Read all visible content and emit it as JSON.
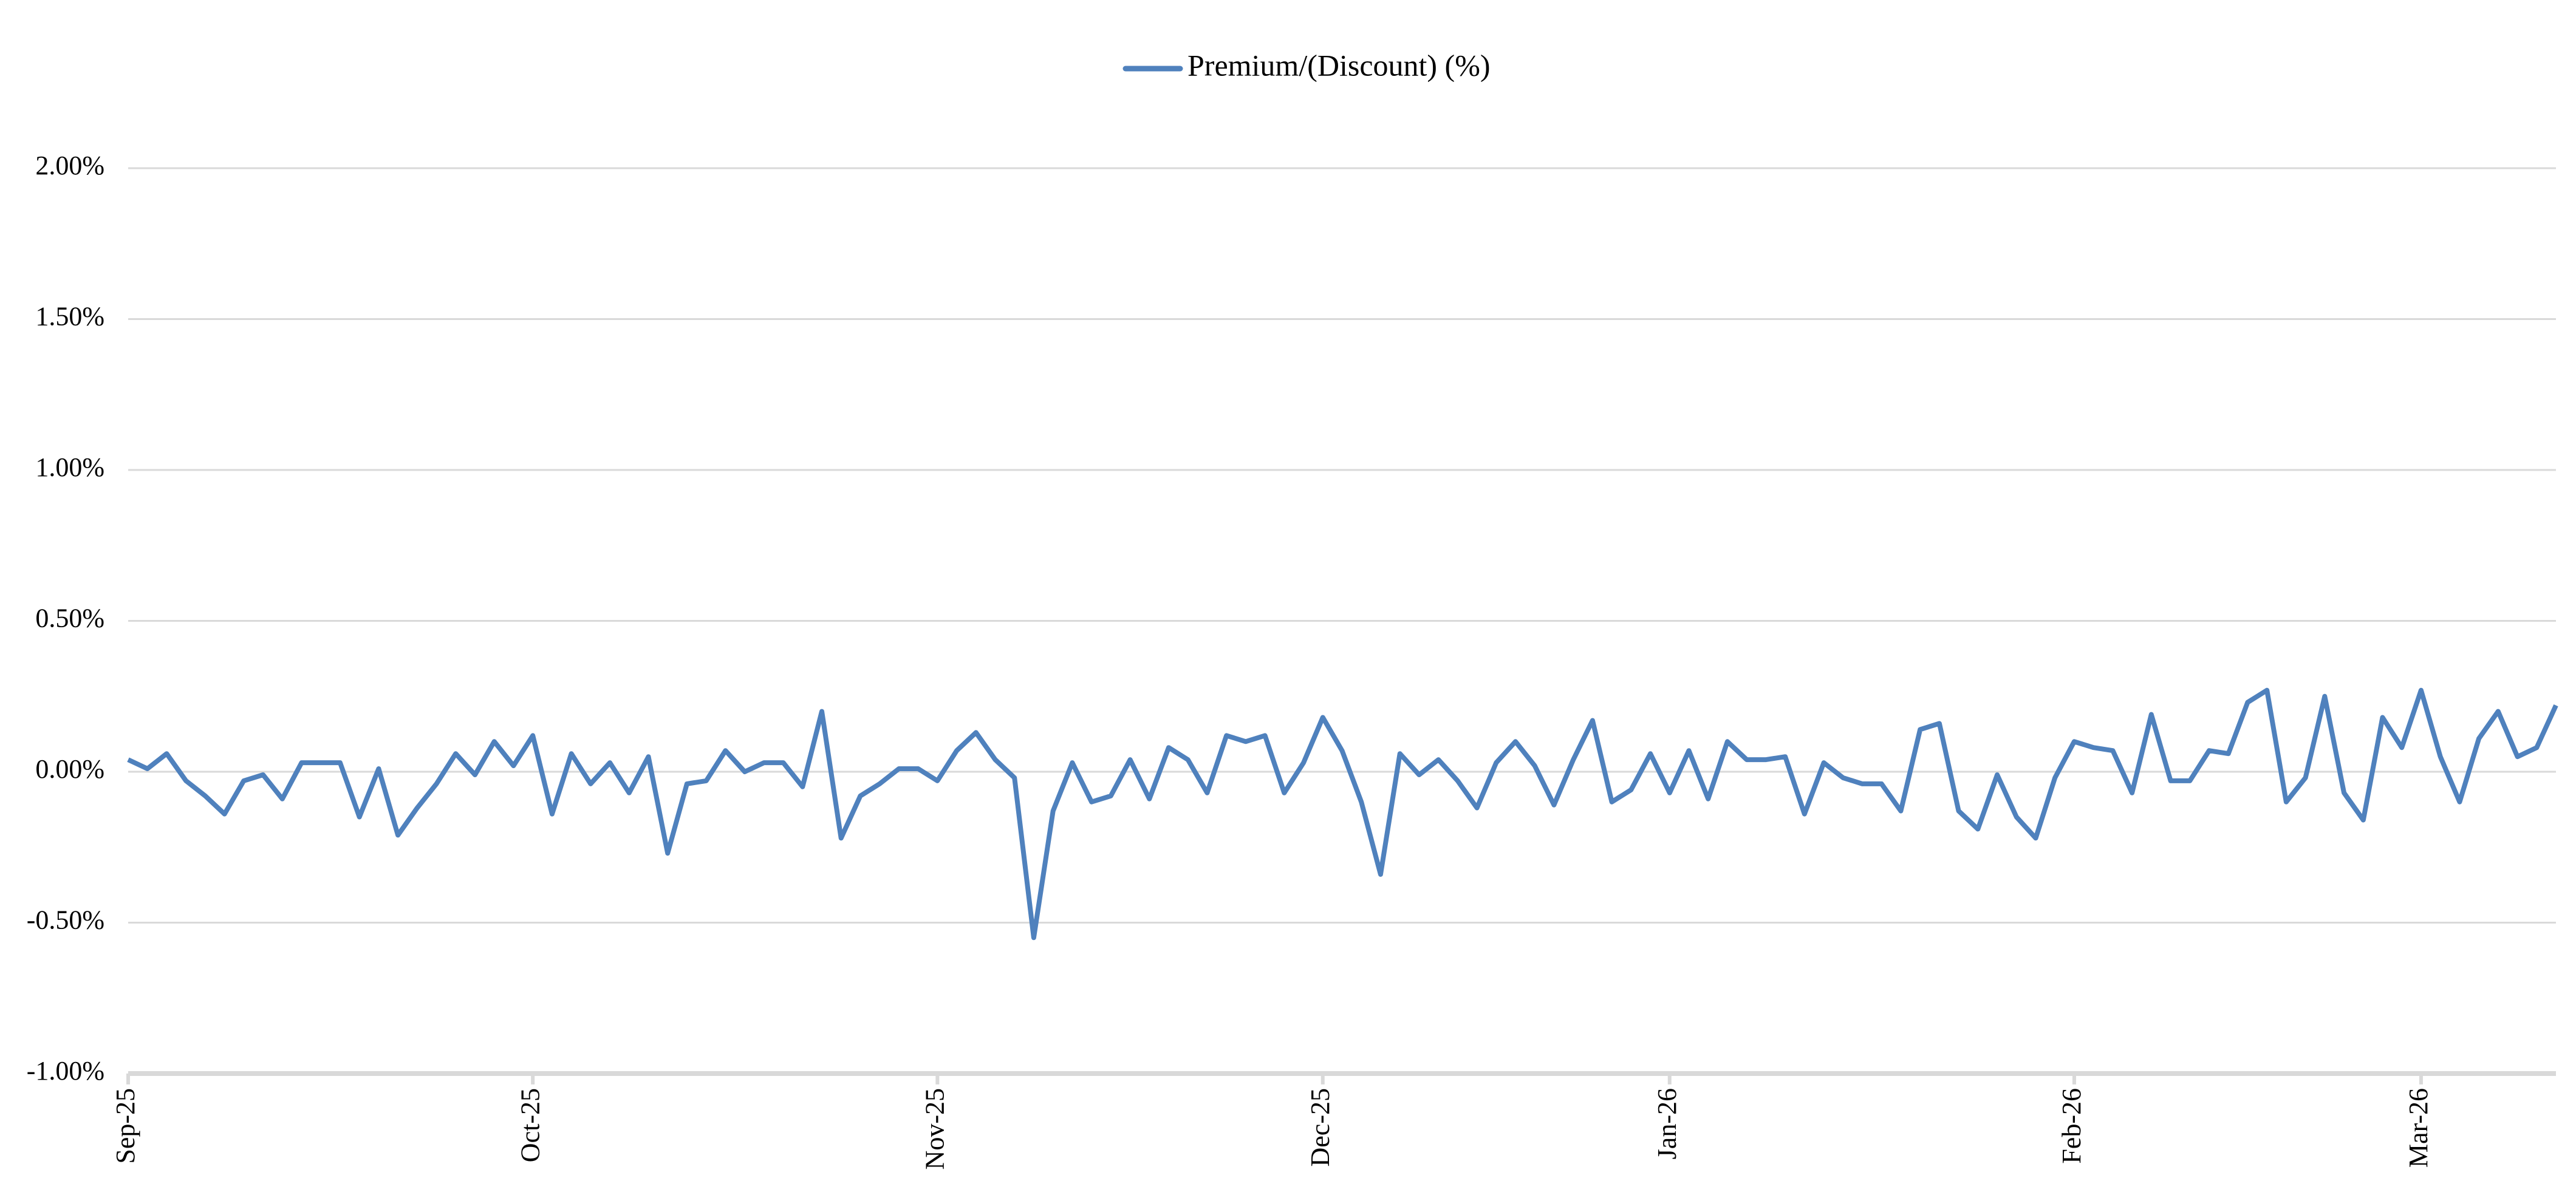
{
  "chart_data": {
    "type": "line",
    "categories": [
      "Sep-25",
      null,
      null,
      null,
      null,
      null,
      null,
      null,
      null,
      null,
      null,
      null,
      null,
      null,
      null,
      null,
      null,
      null,
      null,
      null,
      null,
      "Oct-25",
      null,
      null,
      null,
      null,
      null,
      null,
      null,
      null,
      null,
      null,
      null,
      null,
      null,
      null,
      null,
      null,
      null,
      null,
      null,
      null,
      "Nov-25",
      null,
      null,
      null,
      null,
      null,
      null,
      null,
      null,
      null,
      null,
      null,
      null,
      null,
      null,
      null,
      null,
      null,
      null,
      null,
      "Dec-25",
      null,
      null,
      null,
      null,
      null,
      null,
      null,
      null,
      null,
      null,
      null,
      null,
      null,
      null,
      null,
      null,
      null,
      "Jan-26",
      null,
      null,
      null,
      null,
      null,
      null,
      null,
      null,
      null,
      null,
      null,
      null,
      null,
      null,
      null,
      null,
      null,
      null,
      null,
      null,
      "Feb-26",
      null,
      null,
      null,
      null,
      null,
      null,
      null,
      null,
      null,
      null,
      null,
      null,
      null,
      null,
      null,
      null,
      null,
      "Mar-26",
      null,
      null,
      null,
      null,
      null,
      null,
      null
    ],
    "series": [
      {
        "name": "Premium/(Discount) (%)",
        "color": "#4f81bd",
        "values": [
          0.04,
          0.01,
          0.06,
          -0.03,
          -0.08,
          -0.14,
          -0.03,
          -0.01,
          -0.09,
          0.03,
          0.03,
          0.03,
          -0.15,
          0.01,
          -0.21,
          -0.12,
          -0.04,
          0.06,
          -0.01,
          0.1,
          0.02,
          0.12,
          -0.14,
          0.06,
          -0.04,
          0.03,
          -0.07,
          0.05,
          -0.27,
          -0.04,
          -0.03,
          0.07,
          0.0,
          0.03,
          0.03,
          -0.05,
          0.2,
          -0.22,
          -0.08,
          -0.04,
          0.01,
          0.01,
          -0.03,
          0.07,
          0.13,
          0.04,
          -0.02,
          -0.55,
          -0.13,
          0.03,
          -0.1,
          -0.08,
          0.04,
          -0.09,
          0.08,
          0.04,
          -0.07,
          0.12,
          0.1,
          0.12,
          -0.07,
          0.03,
          0.18,
          0.07,
          -0.1,
          -0.34,
          0.06,
          -0.01,
          0.04,
          -0.03,
          -0.12,
          0.03,
          0.1,
          0.02,
          -0.11,
          0.04,
          0.17,
          -0.1,
          -0.06,
          0.06,
          -0.07,
          0.07,
          -0.09,
          0.1,
          0.04,
          0.04,
          0.05,
          -0.14,
          0.03,
          -0.02,
          -0.04,
          -0.04,
          -0.13,
          0.14,
          0.16,
          -0.13,
          -0.19,
          -0.01,
          -0.15,
          -0.22,
          -0.02,
          0.1,
          0.08,
          0.07,
          -0.07,
          0.19,
          -0.03,
          -0.03,
          0.07,
          0.06,
          0.23,
          0.27,
          -0.1,
          -0.02,
          0.25,
          -0.07,
          -0.16,
          0.18,
          0.08,
          0.27,
          0.05,
          -0.1,
          0.11,
          0.2,
          0.05,
          0.08,
          0.22
        ]
      }
    ],
    "ylim": [
      -1,
      2
    ],
    "yticks": [
      {
        "value": -1,
        "label": "-1.00%"
      },
      {
        "value": -0.5,
        "label": "-0.50%"
      },
      {
        "value": 0,
        "label": "0.00%"
      },
      {
        "value": 0.5,
        "label": "0.50%"
      },
      {
        "value": 1,
        "label": "1.00%"
      },
      {
        "value": 1.5,
        "label": "1.50%"
      },
      {
        "value": 2,
        "label": "2.00%"
      }
    ],
    "grid": true,
    "legend": "top"
  }
}
